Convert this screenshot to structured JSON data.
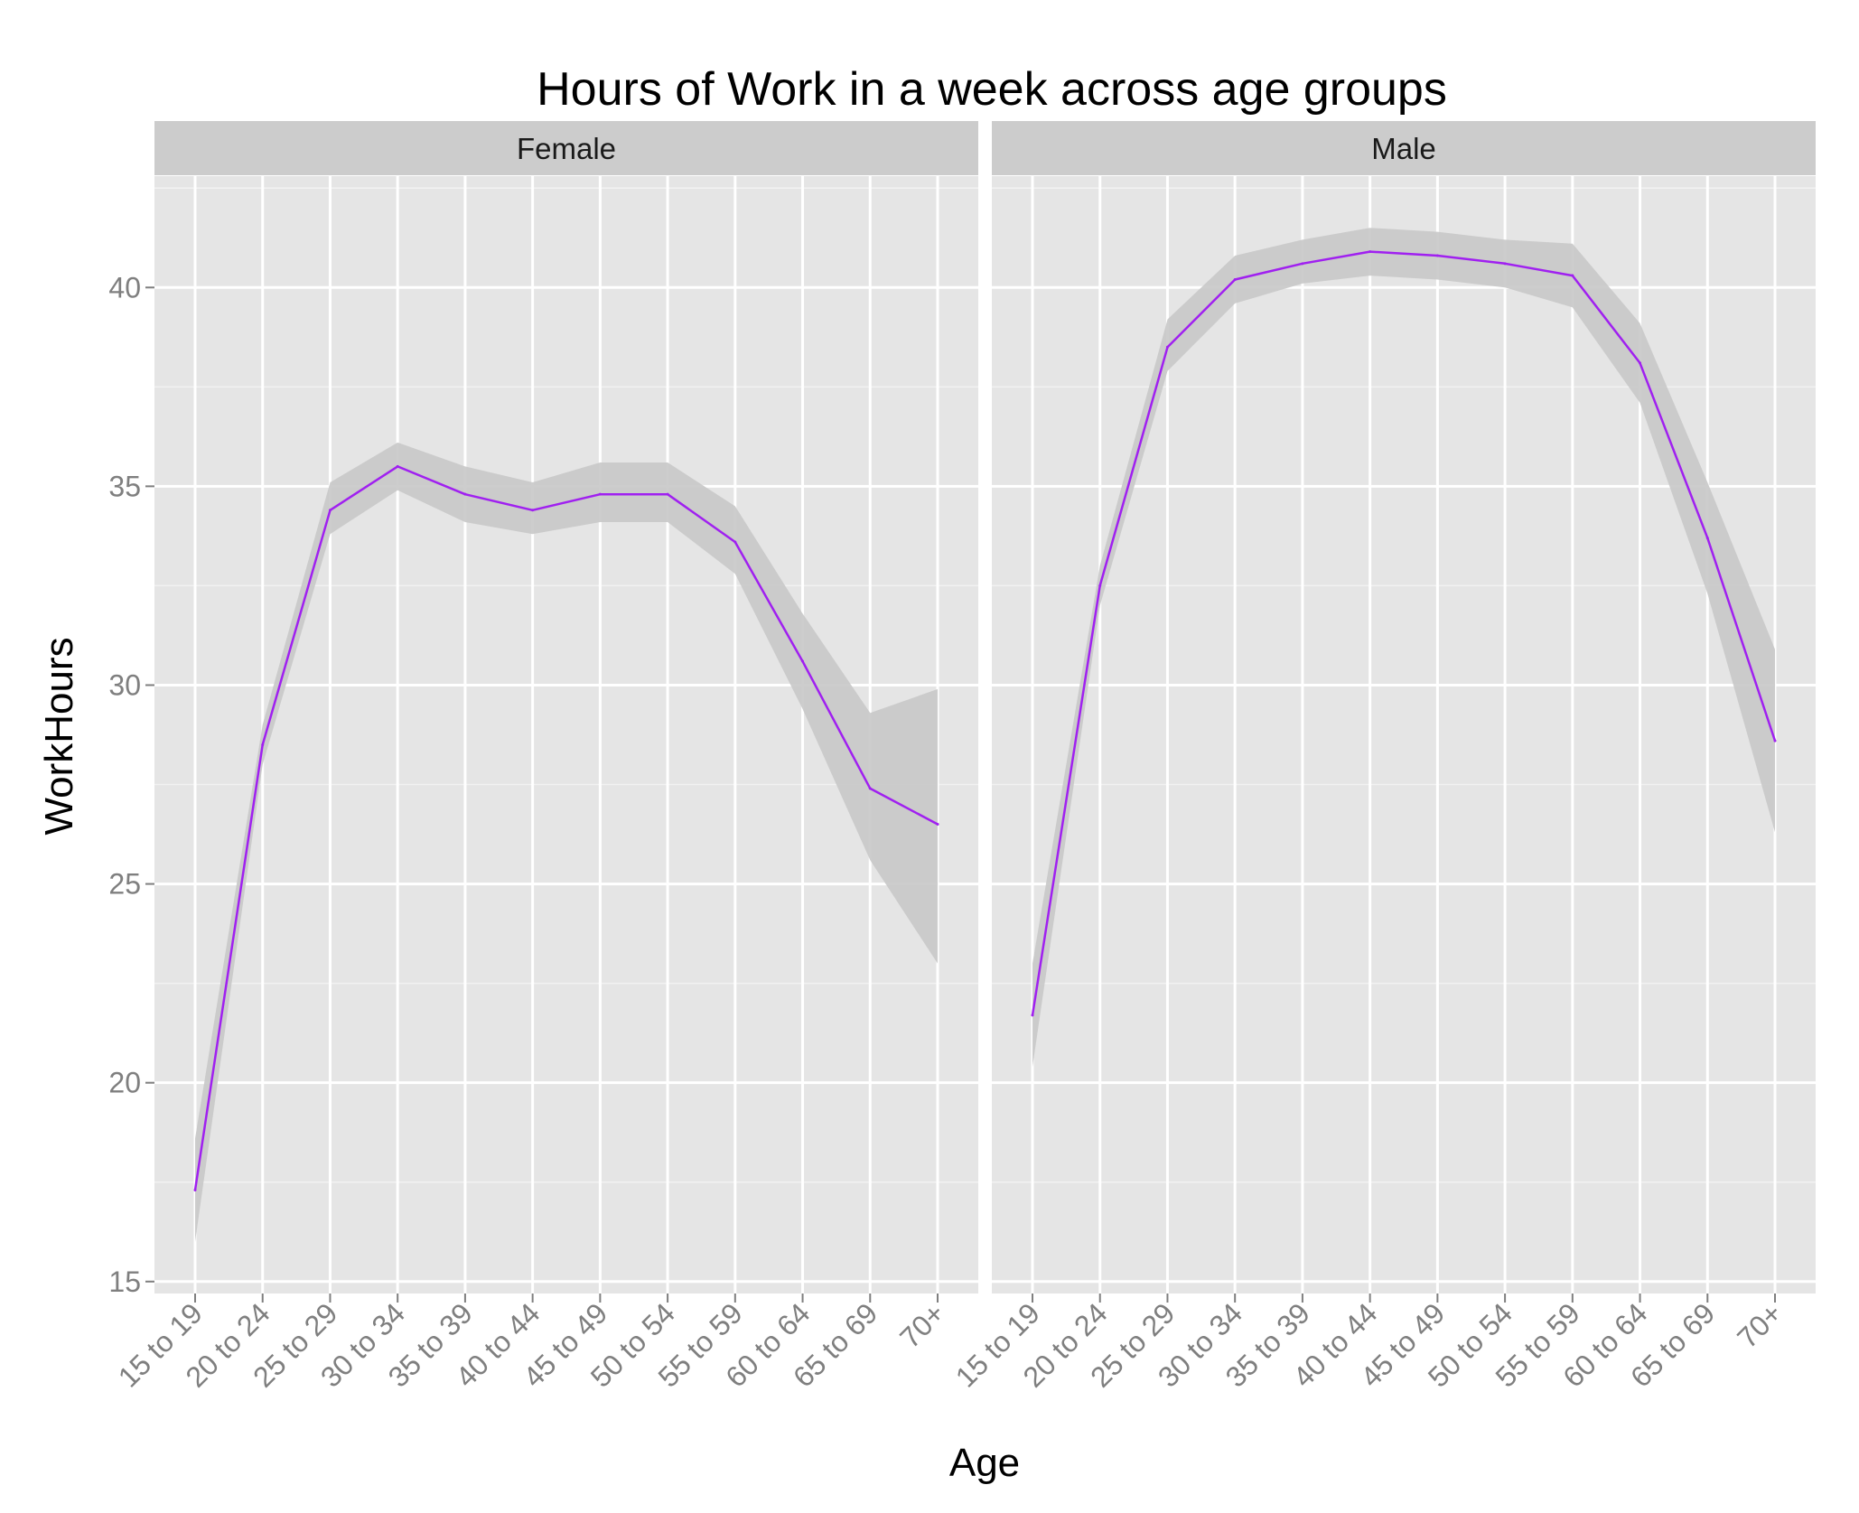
{
  "chart_data": {
    "type": "line",
    "title": "Hours of Work in a week across age groups",
    "xlabel": "Age",
    "ylabel": "WorkHours",
    "ylim": [
      14.7,
      42.8
    ],
    "yticks": [
      15,
      20,
      25,
      30,
      35,
      40
    ],
    "categories": [
      "15 to 19",
      "20 to 24",
      "25 to 29",
      "30 to 34",
      "35 to 39",
      "40 to 44",
      "45 to 49",
      "50 to 54",
      "55 to 59",
      "60 to 64",
      "65 to 69",
      "70+"
    ],
    "grid": true,
    "panel_background": "#e5e5e5",
    "strip_background": "#cccccc",
    "line_color": "#a020f0",
    "ribbon_color": "#c8c8c8",
    "panels": [
      {
        "facet": "Female",
        "values": [
          17.3,
          28.5,
          34.4,
          35.5,
          34.8,
          34.4,
          34.8,
          34.8,
          33.6,
          30.6,
          27.4,
          26.5
        ],
        "lower": [
          16.0,
          28.0,
          33.8,
          34.9,
          34.1,
          33.8,
          34.1,
          34.1,
          32.8,
          29.4,
          25.6,
          23.0
        ],
        "upper": [
          18.6,
          29.0,
          35.1,
          36.1,
          35.5,
          35.1,
          35.6,
          35.6,
          34.5,
          31.8,
          29.3,
          29.9
        ]
      },
      {
        "facet": "Male",
        "values": [
          21.7,
          32.5,
          38.5,
          40.2,
          40.6,
          40.9,
          40.8,
          40.6,
          40.3,
          38.1,
          33.7,
          28.6
        ],
        "lower": [
          20.4,
          32.0,
          37.9,
          39.6,
          40.1,
          40.3,
          40.2,
          40.0,
          39.5,
          37.1,
          32.3,
          26.3
        ],
        "upper": [
          23.0,
          33.0,
          39.2,
          40.8,
          41.2,
          41.5,
          41.4,
          41.2,
          41.1,
          39.1,
          35.1,
          30.9
        ]
      }
    ]
  }
}
